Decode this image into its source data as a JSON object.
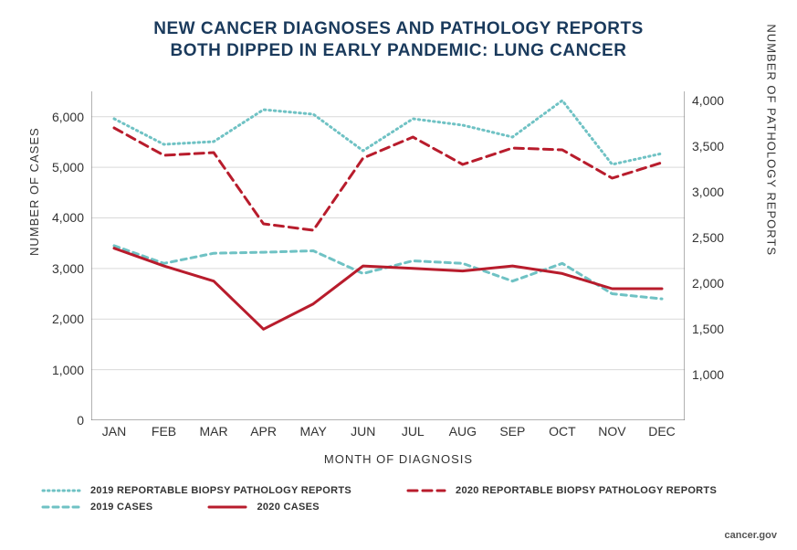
{
  "title_line1": "NEW CANCER DIAGNOSES AND PATHOLOGY REPORTS",
  "title_line2": "BOTH DIPPED IN EARLY PANDEMIC: LUNG CANCER",
  "title_color": "#1a3a5c",
  "title_fontsize": 19,
  "chart": {
    "type": "line-dual-axis",
    "months": [
      "JAN",
      "FEB",
      "MAR",
      "APR",
      "MAY",
      "JUN",
      "JUL",
      "AUG",
      "SEP",
      "OCT",
      "NOV",
      "DEC"
    ],
    "x_label": "MONTH OF DIAGNOSIS",
    "y_left": {
      "label": "NUMBER OF CASES",
      "min": 0,
      "max": 6500,
      "ticks": [
        0,
        1000,
        2000,
        3000,
        4000,
        5000,
        6000
      ],
      "tick_labels": [
        "0",
        "1,000",
        "2,000",
        "3,000",
        "4,000",
        "5,000",
        "6,000"
      ]
    },
    "y_right": {
      "label": "NUMBER OF PATHOLOGY REPORTS",
      "min": 500,
      "max": 4100,
      "ticks": [
        1000,
        1500,
        2000,
        2500,
        3000,
        3500,
        4000
      ],
      "tick_labels": [
        "1,000",
        "1,500",
        "2,000",
        "2,500",
        "3,000",
        "3,500",
        "4,000"
      ]
    },
    "background_color": "#ffffff",
    "grid_color": "#d9d9d9",
    "axis_color": "#666666",
    "series": [
      {
        "key": "reports_2019",
        "label": "2019 REPORTABLE BIOPSY PATHOLOGY REPORTS",
        "axis": "right",
        "color": "#6fc2c4",
        "dash": "1.5,4",
        "width": 3,
        "values": [
          3800,
          3520,
          3550,
          3900,
          3850,
          3450,
          3800,
          3730,
          3600,
          4000,
          3300,
          3420
        ]
      },
      {
        "key": "reports_2020",
        "label": "2020 REPORTABLE BIOPSY PATHOLOGY REPORTS",
        "axis": "right",
        "color": "#b81c2c",
        "dash": "10,6",
        "width": 3,
        "values": [
          3700,
          3400,
          3430,
          2650,
          2580,
          3370,
          3600,
          3300,
          3480,
          3460,
          3150,
          3320
        ]
      },
      {
        "key": "cases_2019",
        "label": "2019 CASES",
        "axis": "left",
        "color": "#6fc2c4",
        "dash": "6,5",
        "width": 3,
        "values": [
          3450,
          3100,
          3300,
          3320,
          3350,
          2900,
          3150,
          3100,
          2750,
          3100,
          2500,
          2400
        ]
      },
      {
        "key": "cases_2020",
        "label": "2020 CASES",
        "axis": "left",
        "color": "#b81c2c",
        "dash": "",
        "width": 3,
        "values": [
          3400,
          3050,
          2750,
          1800,
          2300,
          3050,
          3000,
          2950,
          3050,
          2900,
          2600,
          2600
        ]
      }
    ]
  },
  "legend": {
    "rows": [
      [
        {
          "series": "reports_2019"
        },
        {
          "series": "reports_2020"
        }
      ],
      [
        {
          "series": "cases_2019"
        },
        {
          "series": "cases_2020"
        }
      ]
    ]
  },
  "source": "cancer.gov"
}
